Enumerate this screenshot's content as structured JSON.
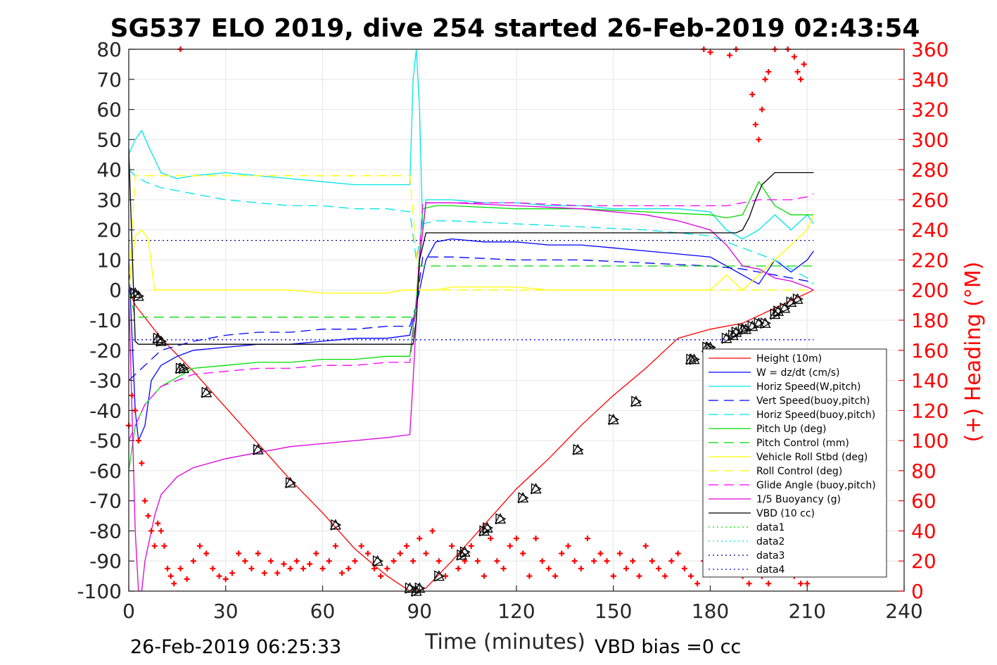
{
  "chart_data": {
    "type": "line",
    "title": "SG537 ELO 2019, dive 254 started 26-Feb-2019 02:43:54",
    "xlabel": "Time (minutes)",
    "ylabel_right": "(+) Heading (°M)",
    "xlim": [
      0,
      240
    ],
    "ylim_left": [
      -100,
      80
    ],
    "ylim_right": [
      0,
      360
    ],
    "x_ticks": [
      "0",
      "30",
      "60",
      "90",
      "120",
      "150",
      "180",
      "210",
      "240"
    ],
    "y_ticks_left": [
      "80",
      "70",
      "60",
      "50",
      "40",
      "30",
      "20",
      "10",
      "0",
      "-10",
      "-20",
      "-30",
      "-40",
      "-50",
      "-60",
      "-70",
      "-80",
      "-90",
      "-100"
    ],
    "y_ticks_right": [
      "360",
      "340",
      "320",
      "300",
      "280",
      "260",
      "240",
      "220",
      "200",
      "180",
      "160",
      "140",
      "120",
      "100",
      "80",
      "60",
      "40",
      "20",
      "0"
    ],
    "grid": true,
    "legend_position": "lower-right",
    "footer_left": "26-Feb-2019 06:25:33",
    "footer_right": "VBD bias =0 cc",
    "series": [
      {
        "name": "Height (10m)",
        "color": "#ff0000",
        "style": "solid",
        "x": [
          0,
          2,
          10,
          20,
          30,
          40,
          50,
          60,
          70,
          80,
          87,
          89,
          92,
          100,
          110,
          120,
          130,
          140,
          150,
          160,
          170,
          180,
          190,
          200,
          212
        ],
        "y": [
          0,
          -5,
          -16,
          -27,
          -39,
          -51,
          -63,
          -74,
          -86,
          -95,
          -100,
          -100,
          -99,
          -90,
          -78,
          -66,
          -56,
          -45,
          -35,
          -26,
          -16,
          -13,
          -11,
          -6,
          0
        ]
      },
      {
        "name": "W = dz/dt (cm/s)",
        "color": "#0000ff",
        "style": "solid",
        "x": [
          0,
          2,
          3,
          5,
          7,
          10,
          15,
          20,
          30,
          40,
          50,
          60,
          70,
          80,
          87,
          88,
          90,
          92,
          95,
          100,
          110,
          120,
          130,
          140,
          150,
          160,
          170,
          180,
          185,
          190,
          195,
          200,
          205,
          210,
          212
        ],
        "y": [
          10,
          -40,
          -50,
          -45,
          -30,
          -25,
          -22,
          -20,
          -19,
          -18,
          -18,
          -17,
          -16,
          -16,
          -15,
          -10,
          0,
          10,
          16,
          17,
          16,
          16,
          15,
          15,
          14,
          13,
          12,
          11,
          8,
          5,
          2,
          10,
          6,
          10,
          13
        ]
      },
      {
        "name": "Horiz Speed(W,pitch)",
        "color": "#00e5e5",
        "style": "solid",
        "x": [
          0,
          2,
          4,
          6,
          10,
          15,
          20,
          30,
          40,
          50,
          60,
          70,
          80,
          85,
          87,
          88,
          89,
          90,
          91,
          92,
          95,
          100,
          110,
          120,
          130,
          140,
          150,
          160,
          170,
          180,
          185,
          190,
          195,
          200,
          205,
          210,
          212
        ],
        "y": [
          45,
          50,
          53,
          48,
          39,
          37,
          38,
          39,
          38,
          37,
          36,
          35,
          35,
          35,
          35,
          70,
          80,
          60,
          20,
          30,
          30,
          30,
          29,
          29,
          28,
          28,
          27,
          27,
          27,
          26,
          20,
          17,
          20,
          25,
          20,
          25,
          22
        ]
      },
      {
        "name": "Vert Speed(buoy,pitch)",
        "color": "#0000ff",
        "style": "dashed",
        "x": [
          0,
          10,
          20,
          30,
          40,
          50,
          60,
          70,
          80,
          87,
          89,
          91,
          95,
          100,
          120,
          140,
          160,
          180,
          190,
          200,
          210,
          212
        ],
        "y": [
          -30,
          -20,
          -17,
          -15,
          -14,
          -14,
          -13,
          -13,
          -12,
          -12,
          -5,
          11,
          11,
          11,
          10,
          10,
          9,
          8,
          7,
          5,
          3,
          2
        ]
      },
      {
        "name": "Horiz Speed(buoy,pitch)",
        "color": "#00e5e5",
        "style": "dashed",
        "x": [
          0,
          2,
          5,
          10,
          20,
          30,
          40,
          50,
          60,
          70,
          80,
          87,
          89,
          91,
          95,
          100,
          120,
          140,
          160,
          180,
          190,
          200,
          210,
          212
        ],
        "y": [
          40,
          38,
          36,
          34,
          32,
          30,
          29,
          28,
          28,
          27,
          27,
          26,
          10,
          22,
          23,
          23,
          22,
          21,
          20,
          18,
          14,
          10,
          4,
          2
        ]
      },
      {
        "name": "Pitch Up (deg)",
        "color": "#00dd00",
        "style": "solid",
        "x": [
          0,
          2,
          5,
          10,
          20,
          30,
          40,
          50,
          60,
          70,
          80,
          87,
          89,
          91,
          95,
          100,
          120,
          140,
          160,
          180,
          185,
          190,
          195,
          200,
          205,
          210,
          212
        ],
        "y": [
          -60,
          -45,
          -38,
          -32,
          -26,
          -25,
          -24,
          -24,
          -23,
          -23,
          -22,
          -22,
          -3,
          27,
          28,
          28,
          27,
          27,
          26,
          25,
          24,
          25,
          36,
          28,
          25,
          25,
          25
        ]
      },
      {
        "name": "Pitch Control (mm)",
        "color": "#00dd00",
        "style": "dashed",
        "x": [
          0,
          2,
          4,
          87,
          89,
          90,
          185,
          190,
          212
        ],
        "y": [
          0,
          -9,
          -9,
          -9,
          -9,
          8,
          8,
          8,
          8
        ]
      },
      {
        "name": "Vehicle Roll Stbd (deg)",
        "color": "#ffff00",
        "style": "solid",
        "x": [
          0,
          2,
          4,
          6,
          8,
          10,
          12,
          15,
          20,
          30,
          40,
          50,
          60,
          70,
          80,
          85,
          87,
          90,
          92,
          95,
          100,
          110,
          120,
          130,
          140,
          150,
          160,
          170,
          180,
          185,
          190,
          195,
          200,
          205,
          210,
          212
        ],
        "y": [
          0,
          18,
          20,
          17,
          0,
          0,
          0,
          0,
          0,
          0,
          0,
          0,
          -1,
          -1,
          -1,
          0,
          0,
          0,
          0,
          0,
          1,
          1,
          1,
          0,
          0,
          0,
          0,
          0,
          0,
          5,
          0,
          5,
          10,
          15,
          20,
          25
        ]
      },
      {
        "name": "Roll Control (deg)",
        "color": "#ffff00",
        "style": "dashed",
        "x": [
          0,
          2,
          10,
          20,
          40,
          60,
          80,
          87,
          90,
          100,
          130,
          160,
          190,
          200,
          212
        ],
        "y": [
          0,
          38,
          38,
          38,
          38,
          38,
          38,
          38,
          0,
          0,
          0,
          0,
          0,
          0,
          0
        ]
      },
      {
        "name": "Glide Angle (buoy,pitch)",
        "color": "#ff00ff",
        "style": "dashed",
        "x": [
          0,
          2,
          5,
          10,
          20,
          30,
          40,
          50,
          60,
          70,
          80,
          87,
          89,
          91,
          95,
          100,
          120,
          140,
          160,
          180,
          185,
          190,
          195,
          200,
          205,
          210,
          212
        ],
        "y": [
          -50,
          -45,
          -38,
          -32,
          -28,
          -27,
          -26,
          -26,
          -25,
          -25,
          -24,
          -24,
          -5,
          29,
          29,
          29,
          29,
          28,
          28,
          28,
          28,
          29,
          30,
          30,
          30,
          31,
          32
        ]
      },
      {
        "name": "1/5 Buoyancy (g)",
        "color": "#dd00dd",
        "style": "solid",
        "x": [
          0,
          1,
          2,
          3,
          4,
          5,
          8,
          10,
          15,
          20,
          30,
          40,
          50,
          60,
          70,
          80,
          87,
          88,
          90,
          92,
          95,
          100,
          120,
          140,
          160,
          170,
          180,
          185,
          190,
          195,
          200,
          205,
          210,
          212
        ],
        "y": [
          0,
          -40,
          -80,
          -100,
          -100,
          -90,
          -75,
          -68,
          -62,
          -59,
          -56,
          -54,
          -52,
          -51,
          -50,
          -49,
          -48,
          -30,
          10,
          29,
          29,
          29,
          28,
          27,
          25,
          23,
          20,
          15,
          8,
          7,
          4,
          3,
          1,
          0
        ]
      },
      {
        "name": "VBD (10 cc)",
        "color": "#000000",
        "style": "solid",
        "x": [
          0,
          2,
          3,
          87,
          88,
          89,
          90,
          92,
          130,
          180,
          188,
          190,
          192,
          194,
          196,
          198,
          200,
          212
        ],
        "y": [
          47,
          -17,
          -18,
          -18,
          -18,
          -10,
          10,
          19,
          19,
          19,
          19,
          20,
          24,
          30,
          35,
          37,
          39,
          39
        ]
      },
      {
        "name": "data1",
        "color": "#00dd00",
        "style": "dotted",
        "x": [],
        "y": []
      },
      {
        "name": "data2",
        "color": "#00e5e5",
        "style": "dotted",
        "x": [],
        "y": []
      },
      {
        "name": "data3",
        "color": "#000080",
        "style": "dotted",
        "x": [
          0,
          212
        ],
        "y": [
          16.5,
          16.5
        ]
      },
      {
        "name": "data4",
        "color": "#0000ff",
        "style": "dotted",
        "x": [
          0,
          212
        ],
        "y": [
          -16.5,
          -16.5
        ]
      }
    ],
    "heading": {
      "name": "Heading",
      "color": "#ff0000",
      "marker": "+",
      "x": [
        0,
        1,
        2,
        3,
        4,
        5,
        6,
        7,
        8,
        9,
        10,
        11,
        12,
        13,
        14,
        16,
        18,
        20,
        22,
        24,
        26,
        28,
        30,
        32,
        34,
        36,
        38,
        40,
        42,
        44,
        46,
        48,
        50,
        52,
        54,
        56,
        58,
        60,
        62,
        64,
        66,
        68,
        70,
        72,
        74,
        76,
        78,
        80,
        82,
        84,
        86,
        88,
        90,
        92,
        94,
        96,
        98,
        100,
        102,
        104,
        106,
        108,
        110,
        112,
        114,
        116,
        118,
        120,
        122,
        124,
        126,
        128,
        130,
        132,
        134,
        136,
        138,
        140,
        142,
        144,
        146,
        148,
        150,
        152,
        154,
        156,
        158,
        160,
        162,
        164,
        166,
        168,
        170,
        172,
        174,
        176,
        178,
        180,
        182,
        184,
        186,
        188,
        190,
        192,
        194,
        196,
        198,
        200,
        202,
        204,
        206,
        208,
        210
      ],
      "y": [
        110,
        130,
        120,
        100,
        85,
        60,
        50,
        40,
        30,
        45,
        40,
        30,
        15,
        10,
        5,
        15,
        8,
        20,
        30,
        25,
        15,
        10,
        8,
        12,
        25,
        20,
        15,
        25,
        12,
        20,
        12,
        18,
        15,
        20,
        15,
        18,
        25,
        15,
        20,
        30,
        12,
        15,
        20,
        30,
        25,
        15,
        10,
        15,
        20,
        25,
        30,
        20,
        35,
        25,
        40,
        20,
        10,
        30,
        15,
        20,
        30,
        20,
        10,
        35,
        20,
        15,
        30,
        35,
        25,
        10,
        35,
        20,
        15,
        10,
        25,
        30,
        20,
        15,
        35,
        20,
        25,
        20,
        10,
        25,
        15,
        20,
        10,
        30,
        20,
        15,
        10,
        20,
        25,
        15,
        10,
        5,
        20,
        15,
        25,
        30,
        25,
        20,
        10,
        5,
        15,
        10,
        5,
        20,
        30,
        15,
        10,
        5,
        5
      ]
    },
    "heading_extra": {
      "x": [
        16,
        178,
        180,
        186,
        188,
        193,
        194,
        195,
        196,
        197,
        198,
        200,
        204,
        206,
        207,
        208,
        209
      ],
      "y": [
        360,
        360,
        358,
        356,
        360,
        330,
        310,
        300,
        320,
        340,
        345,
        360,
        360,
        355,
        345,
        340,
        350
      ]
    },
    "waypoints": {
      "x": [
        2,
        3,
        9,
        10,
        16,
        17,
        24,
        40,
        50,
        64,
        77,
        87,
        89,
        90,
        96,
        103,
        104,
        110,
        111,
        115,
        122,
        126,
        139,
        150,
        157,
        174,
        175,
        179,
        180,
        185,
        187,
        188,
        190,
        191,
        193,
        195,
        197,
        200,
        201,
        203,
        205,
        207
      ],
      "y": [
        -1,
        -2,
        -16,
        -17,
        -26,
        -26,
        -34,
        -53,
        -64,
        -78,
        -90,
        -99,
        -100,
        -99,
        -95,
        -88,
        -87,
        -80,
        -79,
        -76,
        -69,
        -66,
        -53,
        -43,
        -37,
        -23,
        -23,
        -19,
        -19,
        -16,
        -15,
        -14,
        -13,
        -13,
        -12,
        -11,
        -11,
        -8,
        -7,
        -6,
        -4,
        -3
      ]
    }
  }
}
